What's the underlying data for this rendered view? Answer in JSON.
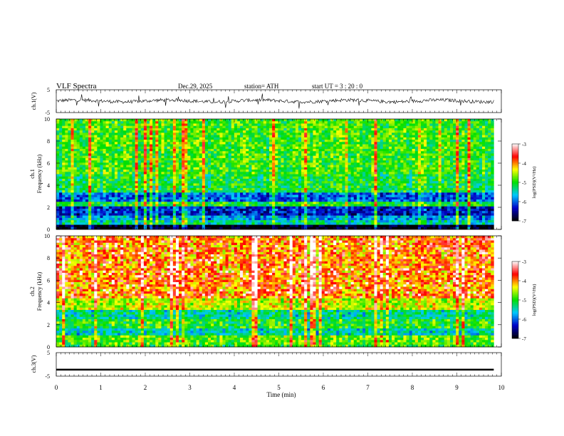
{
  "header": {
    "title": "VLF  Spectra",
    "date": "Dec.29, 2025",
    "station": "station= ATH",
    "start": "start  UT  =    3  : 20 : 0"
  },
  "chart_data": [
    {
      "type": "line",
      "name": "ch1-waveform",
      "ylabel": "ch.1(V)",
      "ylim": [
        -5,
        5
      ],
      "yticks": [
        "5",
        "-5"
      ],
      "x_range": [
        0,
        9.83
      ],
      "baseline": 0.1,
      "amplitude": 1.5
    },
    {
      "type": "heatmap",
      "name": "ch1-spectrogram",
      "ylabel_channel": "ch.1",
      "ylabel": "Frequency  (kHz)",
      "ylim": [
        0,
        10
      ],
      "yticks": [
        "0",
        "2",
        "4",
        "6",
        "8",
        "10"
      ],
      "x_range": [
        0,
        9.83
      ],
      "bands": [
        {
          "from": 0.0,
          "to": 0.35,
          "level": -7.0
        },
        {
          "from": 0.35,
          "to": 0.8,
          "level": -5.4
        },
        {
          "from": 0.8,
          "to": 1.3,
          "level": -5.8
        },
        {
          "from": 1.3,
          "to": 2.0,
          "level": -6.3
        },
        {
          "from": 2.0,
          "to": 2.4,
          "level": -5.0
        },
        {
          "from": 2.4,
          "to": 3.3,
          "level": -6.0
        },
        {
          "from": 3.3,
          "to": 5.0,
          "level": -5.1
        },
        {
          "from": 5.0,
          "to": 10.0,
          "level": -4.9
        }
      ]
    },
    {
      "type": "heatmap",
      "name": "ch2-spectrogram",
      "ylabel_channel": "ch.2",
      "ylabel": "Frequency  (kHz)",
      "ylim": [
        0,
        10
      ],
      "yticks": [
        "0",
        "2",
        "4",
        "6",
        "8",
        "10"
      ],
      "x_range": [
        0,
        9.83
      ],
      "bands": [
        {
          "from": 0.0,
          "to": 0.3,
          "level": -5.0
        },
        {
          "from": 0.3,
          "to": 1.0,
          "level": -4.8
        },
        {
          "from": 1.0,
          "to": 1.6,
          "level": -5.5
        },
        {
          "from": 1.6,
          "to": 2.6,
          "level": -5.0
        },
        {
          "from": 2.6,
          "to": 3.4,
          "level": -5.4
        },
        {
          "from": 3.4,
          "to": 4.4,
          "level": -4.5
        },
        {
          "from": 4.4,
          "to": 10.0,
          "level": -4.1
        }
      ]
    },
    {
      "type": "line",
      "name": "ch3-waveform",
      "ylabel": "ch.3(V)",
      "ylim": [
        -5,
        5
      ],
      "yticks": [
        "5",
        "0",
        "-5"
      ],
      "x_range": [
        0,
        9.83
      ],
      "baseline": -2.0,
      "amplitude": 0.15
    }
  ],
  "x_axis": {
    "label": "Time  (min)",
    "ticks": [
      "0",
      "1",
      "2",
      "3",
      "4",
      "5",
      "6",
      "7",
      "8",
      "9",
      "10"
    ],
    "range": [
      0,
      10
    ]
  },
  "colorbar": {
    "label": "log(PSD)(V²/Hz)",
    "ticks": [
      "-3",
      "-4",
      "-5",
      "-6",
      "-7"
    ],
    "range": [
      -7,
      -3
    ],
    "colors": [
      "#000000",
      "#0000c8",
      "#00c8ff",
      "#00e000",
      "#ffff00",
      "#ff0000",
      "#ffffff"
    ]
  }
}
